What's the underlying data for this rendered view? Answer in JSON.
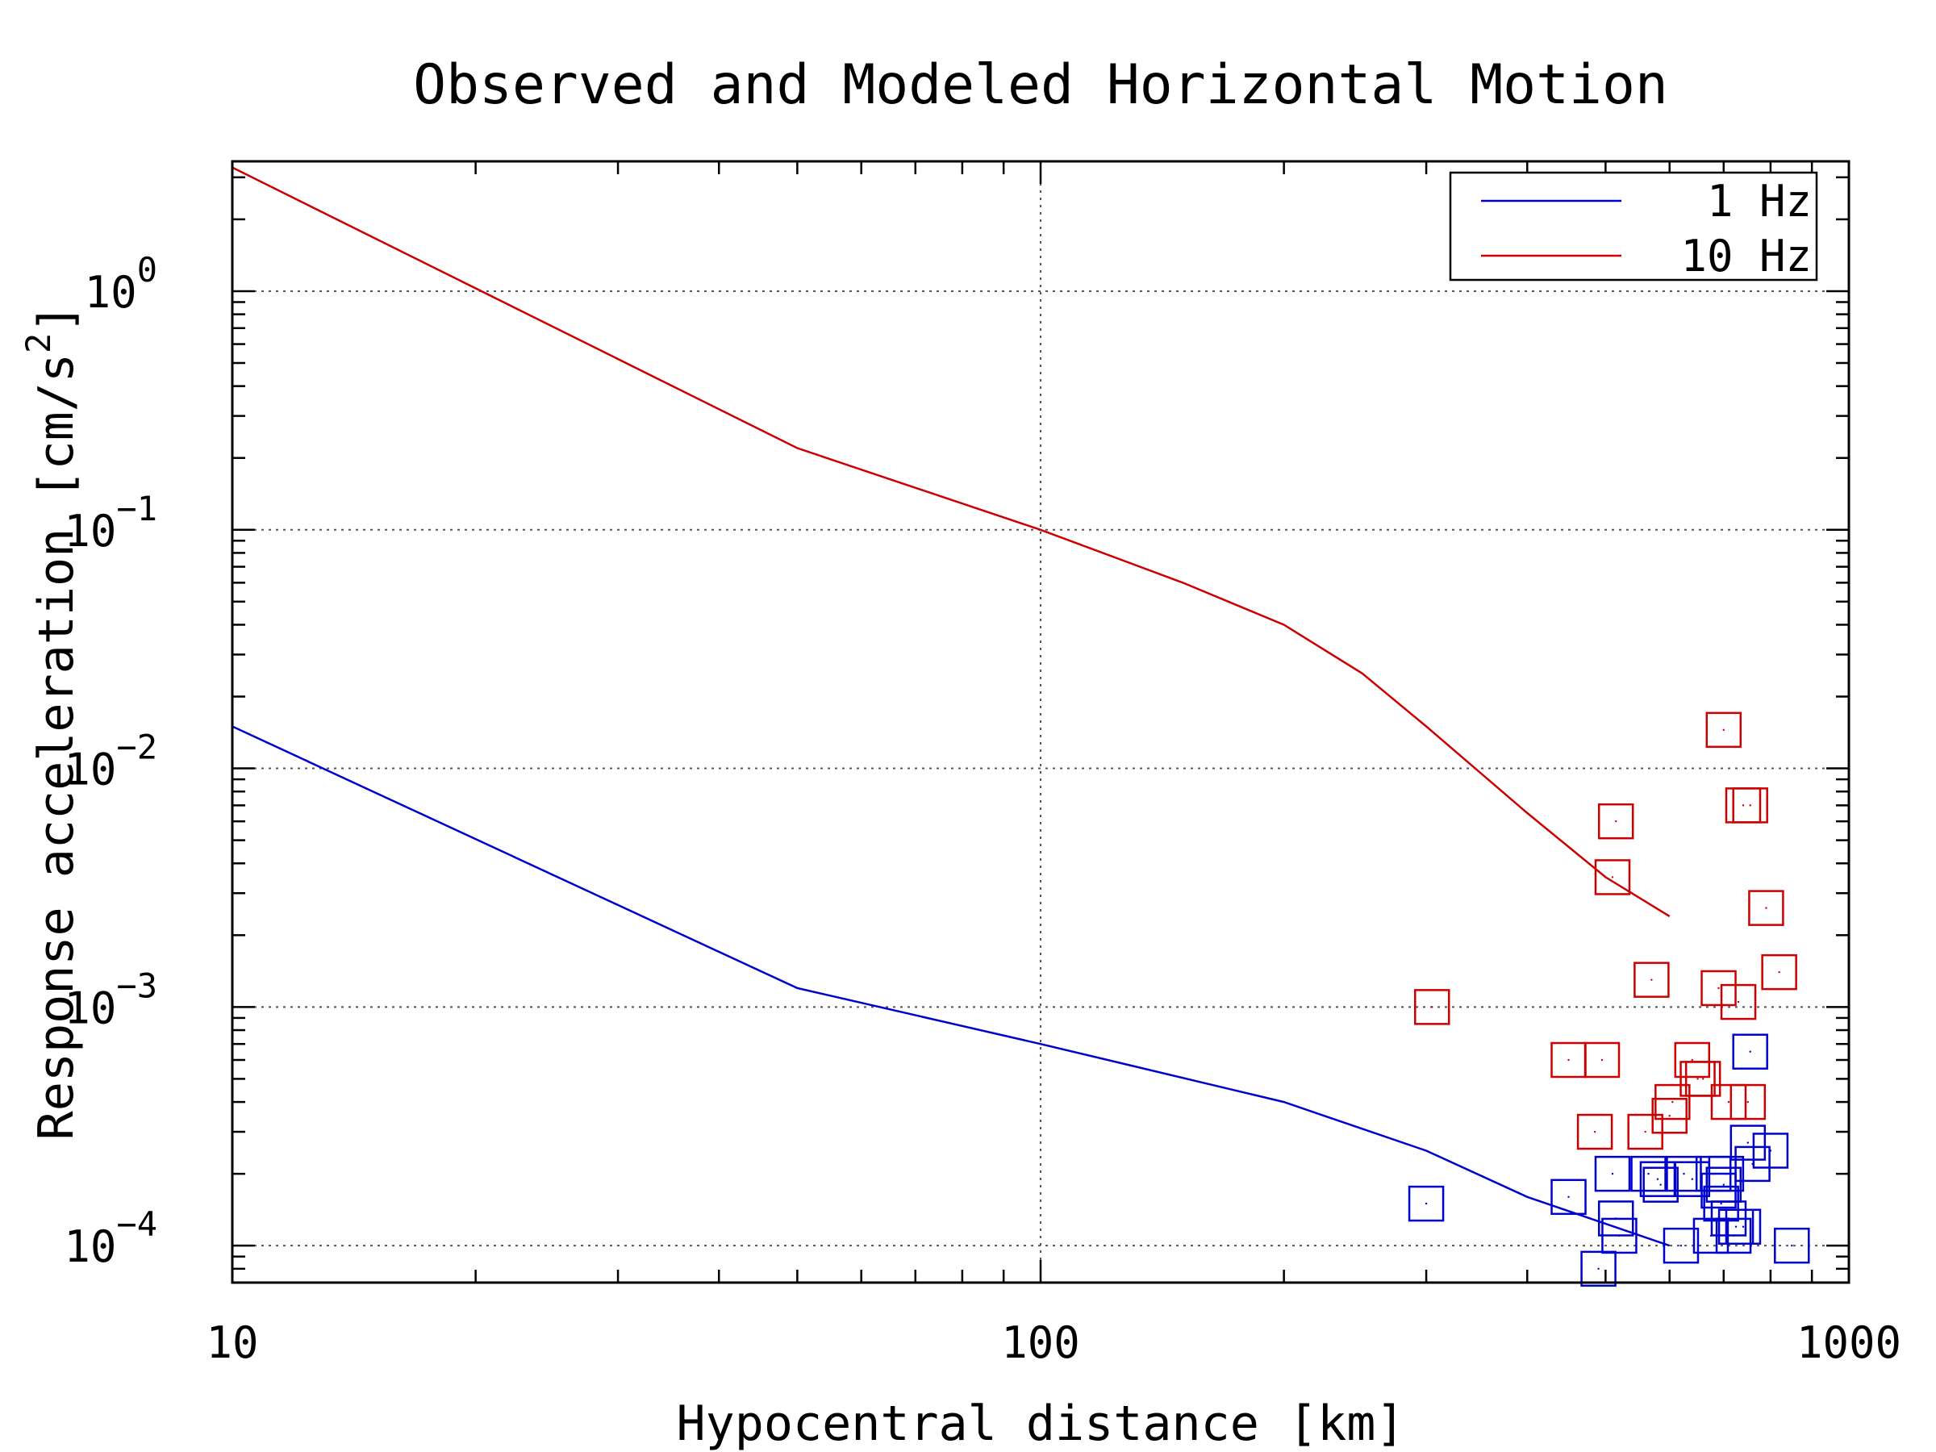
{
  "chart_data": {
    "type": "scatter",
    "title": "Observed and Modeled Horizontal Motion",
    "xlabel": "Hypocentral distance [km]",
    "ylabel": "Response acceleration [cm/s^2]",
    "ylabel_main": "Response acceleration [cm/s",
    "ylabel_sup": "2",
    "ylabel_close": "]",
    "x_scale": "log",
    "y_scale": "log",
    "xlim": [
      10,
      1000
    ],
    "ylim": [
      7e-05,
      3.5
    ],
    "x_ticks": [
      {
        "value": 10,
        "label": "10"
      },
      {
        "value": 100,
        "label": "100"
      },
      {
        "value": 1000,
        "label": "1000"
      }
    ],
    "y_ticks": [
      {
        "value": 0.0001,
        "base": "10",
        "exp": "−4"
      },
      {
        "value": 0.001,
        "base": "10",
        "exp": "−3"
      },
      {
        "value": 0.01,
        "base": "10",
        "exp": "−2"
      },
      {
        "value": 0.1,
        "base": "10",
        "exp": "−1"
      },
      {
        "value": 1,
        "base": "10",
        "exp": "0"
      }
    ],
    "grid": true,
    "legend_position": "top-right",
    "series": [
      {
        "name": "1 Hz",
        "color": "#0000cc",
        "model": {
          "x": [
            10,
            50,
            100,
            200,
            300,
            400,
            600
          ],
          "y": [
            0.015,
            0.0012,
            0.0007,
            0.0004,
            0.00025,
            0.00016,
            0.0001
          ]
        },
        "observed": {
          "x": [
            300,
            450,
            490,
            510,
            515,
            520,
            565,
            580,
            585,
            620,
            625,
            640,
            675,
            680,
            690,
            695,
            700,
            705,
            710,
            720,
            725,
            740,
            750,
            755,
            760,
            800,
            850
          ],
          "y": [
            0.00015,
            0.00016,
            8e-05,
            0.0002,
            0.00013,
            0.00011,
            0.0002,
            0.00019,
            0.00018,
            0.0001,
            0.0002,
            0.00019,
            0.00011,
            0.0002,
            0.00017,
            0.00015,
            0.00018,
            0.0002,
            0.00013,
            0.00011,
            0.00012,
            0.00012,
            0.00027,
            0.00065,
            0.00022,
            0.00025,
            0.0001
          ]
        }
      },
      {
        "name": "10 Hz",
        "color": "#cc0000",
        "model": {
          "x": [
            10,
            50,
            100,
            150,
            200,
            250,
            300,
            400,
            500,
            600
          ],
          "y": [
            3.3,
            0.22,
            0.1,
            0.06,
            0.04,
            0.025,
            0.015,
            0.0065,
            0.0035,
            0.0024
          ]
        },
        "observed": {
          "x": [
            305,
            450,
            485,
            495,
            510,
            515,
            560,
            570,
            600,
            605,
            640,
            650,
            660,
            690,
            700,
            710,
            730,
            740,
            750,
            755,
            790,
            820
          ],
          "y": [
            0.001,
            0.0006,
            0.0003,
            0.0006,
            0.0035,
            0.006,
            0.0003,
            0.0013,
            0.00035,
            0.0004,
            0.0006,
            0.0005,
            0.0005,
            0.0012,
            0.0145,
            0.0004,
            0.00105,
            0.007,
            0.0004,
            0.007,
            0.0026,
            0.0014
          ]
        }
      }
    ]
  }
}
